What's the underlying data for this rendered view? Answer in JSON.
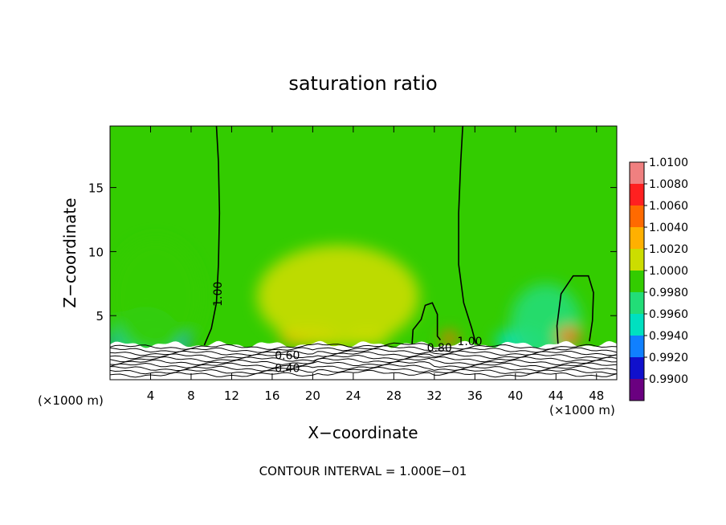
{
  "chart_data": {
    "type": "heatmap",
    "title": "saturation ratio",
    "xlabel": "X−coordinate",
    "ylabel": "Z−coordinate",
    "x_unit_left": "(×1000 m)",
    "x_unit_right": "(×1000 m)",
    "xlim": [
      0,
      50
    ],
    "ylim": [
      0,
      19.8
    ],
    "x_ticks": [
      4,
      8,
      12,
      16,
      20,
      24,
      28,
      32,
      36,
      40,
      44,
      48
    ],
    "x_tick_labels": [
      "4",
      "8",
      "12",
      "16",
      "20",
      "24",
      "28",
      "32",
      "36",
      "40",
      "44",
      "48"
    ],
    "y_ticks": [
      5,
      10,
      15
    ],
    "y_tick_labels": [
      "5",
      "10",
      "15"
    ],
    "footer": "CONTOUR INTERVAL = 1.000E−01",
    "colorbar": {
      "levels": [
        "1.0100",
        "1.0080",
        "1.0060",
        "1.0040",
        "1.0020",
        "1.0000",
        "0.9980",
        "0.9960",
        "0.9940",
        "0.9920",
        "0.9900"
      ],
      "colors": [
        "#f08080",
        "#ff2020",
        "#ff6a00",
        "#ffb000",
        "#ccdd00",
        "#33cc00",
        "#22dd77",
        "#00e0c0",
        "#1080ff",
        "#1010cc",
        "#6a0080"
      ]
    },
    "contour_labels": [
      {
        "text": "1.00",
        "x": 11,
        "z": 7
      },
      {
        "text": "1.00",
        "x": 35.5,
        "z": 3.0
      },
      {
        "text": "0.80",
        "x": 32.5,
        "z": 2.5
      },
      {
        "text": "0.60",
        "x": 17.5,
        "z": 1.9
      },
      {
        "text": "0.40",
        "x": 17.5,
        "z": 0.9
      }
    ],
    "contours_1_00": [
      [
        [
          10.5,
          19.8
        ],
        [
          10.7,
          17
        ],
        [
          10.8,
          13
        ],
        [
          10.7,
          9
        ],
        [
          10.5,
          6
        ],
        [
          10,
          4
        ],
        [
          9.3,
          2.7
        ]
      ],
      [
        [
          34.8,
          19.8
        ],
        [
          34.6,
          17
        ],
        [
          34.4,
          13
        ],
        [
          34.4,
          9
        ],
        [
          34.9,
          6
        ],
        [
          35.7,
          4
        ],
        [
          36.1,
          2.8
        ]
      ],
      [
        [
          29.8,
          2.8
        ],
        [
          29.9,
          3.9
        ],
        [
          30.7,
          4.7
        ],
        [
          31.1,
          5.8
        ],
        [
          31.8,
          6
        ],
        [
          32.3,
          5.1
        ],
        [
          32.3,
          3.4
        ],
        [
          32.6,
          3.1
        ]
      ],
      [
        [
          44.2,
          2.8
        ],
        [
          44.1,
          4.2
        ],
        [
          44.5,
          6.7
        ],
        [
          45.7,
          8.1
        ],
        [
          47.2,
          8.1
        ],
        [
          47.7,
          6.8
        ],
        [
          47.6,
          4.6
        ],
        [
          47.3,
          3.0
        ]
      ]
    ],
    "regions": [
      {
        "x": 0.6,
        "z": 2.9,
        "rx": 1.0,
        "rz": 0.8,
        "value": 0.992
      },
      {
        "x": 5.6,
        "z": 3.1,
        "rx": 2.3,
        "rz": 1.2,
        "value": 0.993
      },
      {
        "x": 3.5,
        "z": 3.2,
        "rx": 3.5,
        "rz": 2.5,
        "value": 0.997
      },
      {
        "x": 40.5,
        "z": 3.0,
        "rx": 2.5,
        "rz": 1.0,
        "value": 0.995
      },
      {
        "x": 43,
        "z": 4.5,
        "rx": 3.5,
        "rz": 3.0,
        "value": 0.998
      },
      {
        "x": 4.5,
        "z": 6.5,
        "rx": 4.5,
        "rz": 4.5,
        "value": 0.999
      },
      {
        "x": 19.5,
        "z": 3.3,
        "rx": 2.8,
        "rz": 0.7,
        "value": 1.004
      },
      {
        "x": 25.5,
        "z": 3.2,
        "rx": 2.0,
        "rz": 0.6,
        "value": 1.003
      },
      {
        "x": 22.5,
        "z": 6.5,
        "rx": 8.0,
        "rz": 4.0,
        "value": 1.0015
      },
      {
        "x": 33.5,
        "z": 3.2,
        "rx": 0.8,
        "rz": 0.6,
        "value": 1.006
      },
      {
        "x": 45.3,
        "z": 3.4,
        "rx": 1.2,
        "rz": 0.7,
        "value": 1.006
      }
    ]
  }
}
